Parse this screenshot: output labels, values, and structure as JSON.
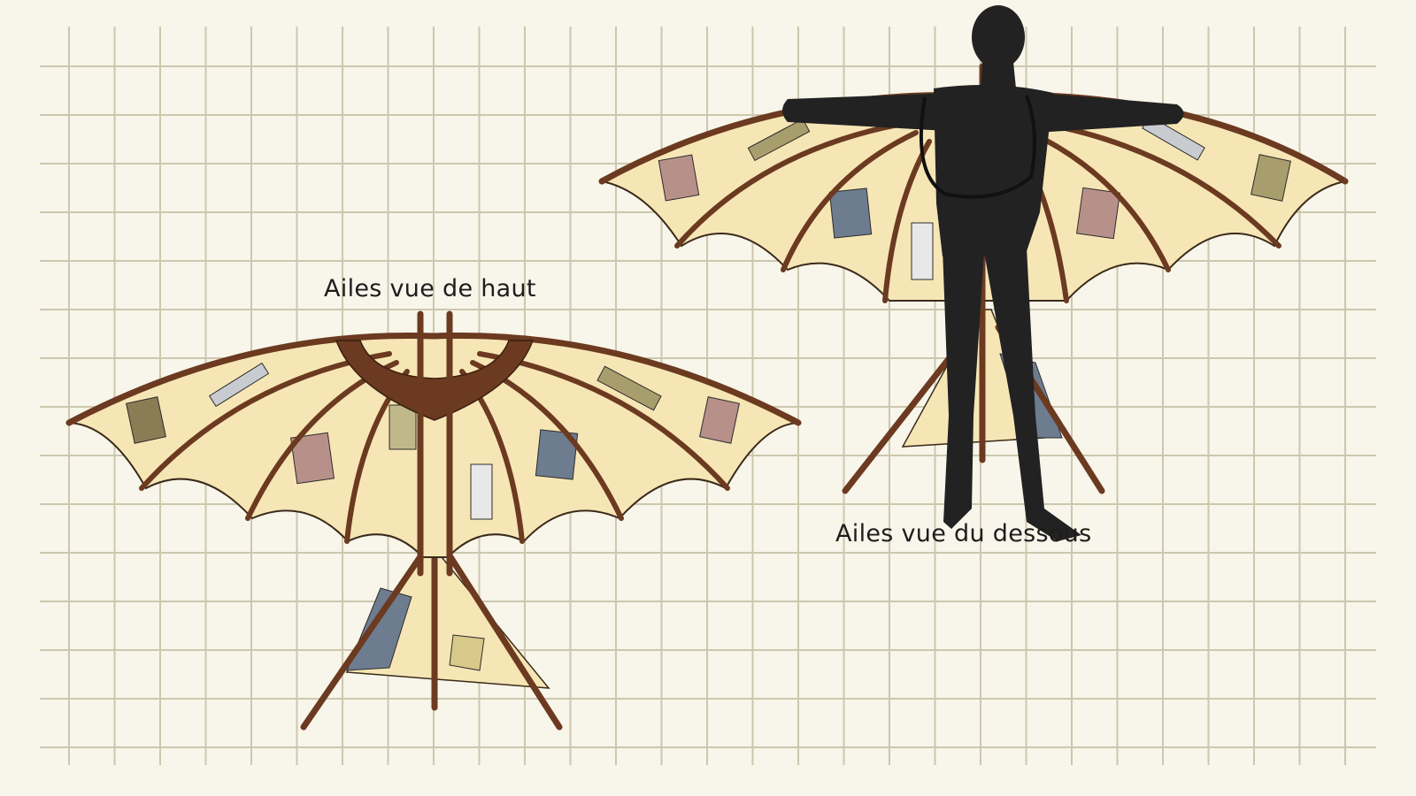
{
  "labels": {
    "top_view": "Ailes vue de haut",
    "under_view": "Ailes vue du dessous"
  },
  "colors": {
    "background": "#f8f5ea",
    "grid": "#cdc7ad",
    "frame": "#6b3a20",
    "frame_dark": "#4a2612",
    "canvas": "#f7e6b5",
    "canvas_light": "#fbefcf",
    "patch_rose": "#b8908a",
    "patch_blue": "#6e7c90",
    "patch_olive": "#a89d6c",
    "patch_khaki": "#c0b88a",
    "patch_grey": "#c8ccd0",
    "silhouette": "#222222"
  },
  "figures": [
    {
      "name": "top-view-wings",
      "patches": [
        "rose",
        "blue",
        "olive",
        "khaki",
        "grey",
        "stripes",
        "checked"
      ]
    },
    {
      "name": "under-view-wings-with-person",
      "patches": [
        "rose",
        "blue",
        "olive",
        "khaki",
        "grey",
        "stripes"
      ]
    }
  ]
}
